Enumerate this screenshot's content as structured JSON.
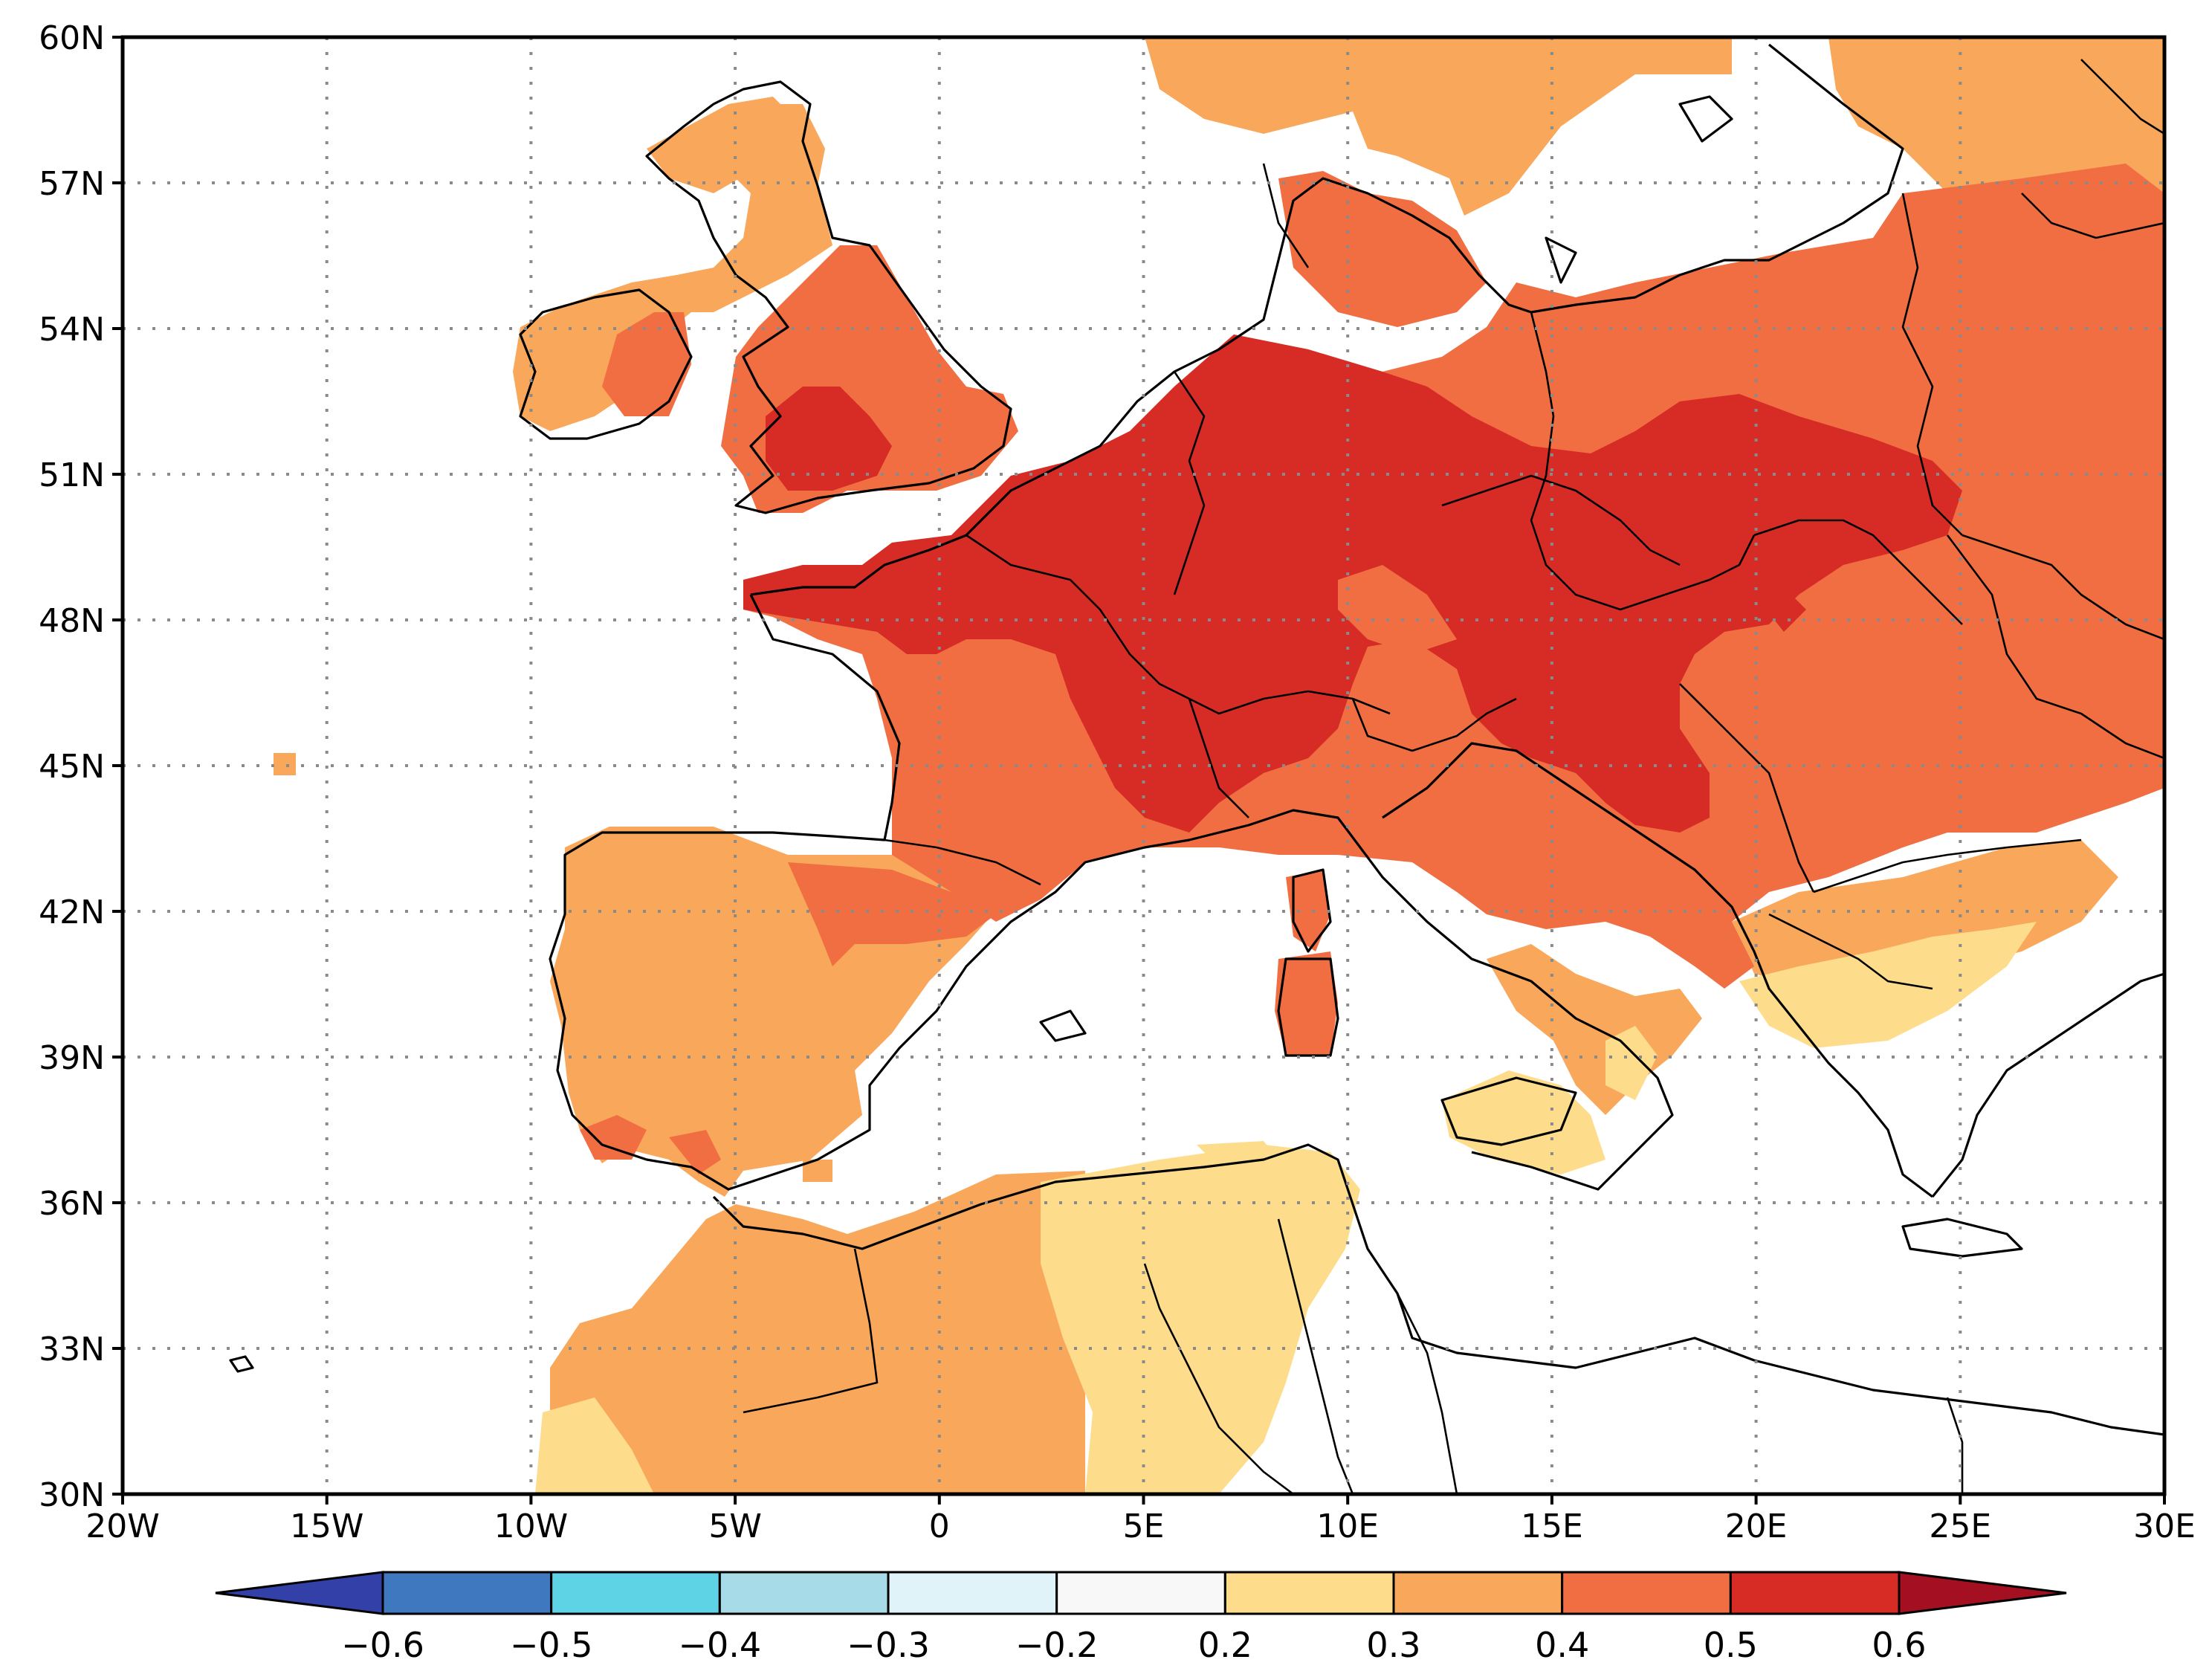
{
  "map": {
    "lon_labels": [
      "20W",
      "15W",
      "10W",
      "5W",
      "0",
      "5E",
      "10E",
      "15E",
      "20E",
      "25E",
      "30E"
    ],
    "lat_labels": [
      "30N",
      "33N",
      "36N",
      "39N",
      "42N",
      "45N",
      "48N",
      "51N",
      "54N",
      "57N",
      "60N"
    ],
    "lon_range": [
      -20,
      30
    ],
    "lat_range": [
      30,
      60
    ]
  },
  "colorbar": {
    "labels": [
      "−0.6",
      "−0.5",
      "−0.4",
      "−0.3",
      "−0.2",
      "0.2",
      "0.3",
      "0.4",
      "0.5",
      "0.6"
    ],
    "colors": [
      "#3340a8",
      "#4078bf",
      "#5fd3e6",
      "#a8dbe8",
      "#dff3f8",
      "#f8f8f8",
      "#fddd8c",
      "#f9a75b",
      "#f16e42",
      "#d72c26",
      "#a50f22"
    ]
  },
  "fill_colors": {
    "c03": "#fddd8c",
    "c04": "#f9a75b",
    "c05": "#f16e42",
    "c06": "#d72c26",
    "neg": "#dff3f8"
  }
}
